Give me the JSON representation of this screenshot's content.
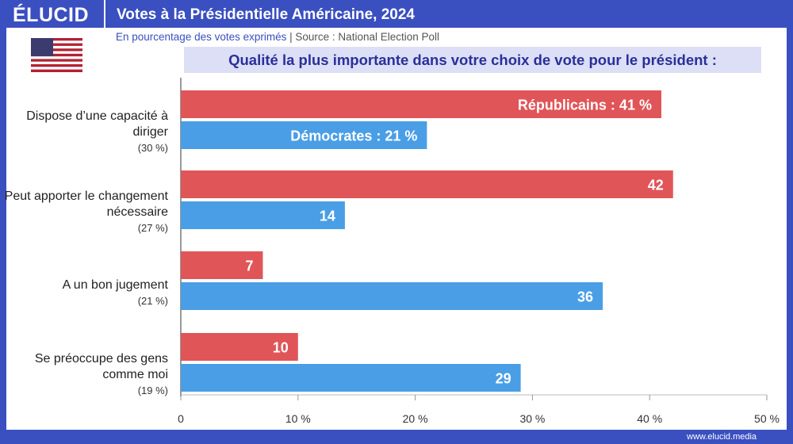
{
  "header": {
    "logo": "ÉLUCID",
    "title": "Votes à la Présidentielle Américaine, 2024",
    "subtitle": "En pourcentage des votes exprimés",
    "source": "Source : National Election Poll",
    "question": "Qualité la plus importante dans votre choix de vote pour le président :",
    "url": "www.elucid.media"
  },
  "chart_data": {
    "type": "bar",
    "orientation": "horizontal",
    "categories": [
      "Dispose d’une capacité à diriger",
      "Peut apporter le changement nécessaire",
      "A un bon jugement",
      "Se préoccupe des gens comme moi"
    ],
    "category_shares": [
      "(30 %)",
      "(27 %)",
      "(21 %)",
      "(19 %)"
    ],
    "series": [
      {
        "name": "Républicains",
        "color": "#e05558",
        "values": [
          41,
          42,
          7,
          10
        ],
        "labels": [
          "Républicains : 41 %",
          "42",
          "7",
          "10"
        ]
      },
      {
        "name": "Démocrates",
        "color": "#4a9ee6",
        "values": [
          21,
          14,
          36,
          29
        ],
        "labels": [
          "Démocrates : 21 %",
          "14",
          "36",
          "29"
        ]
      }
    ],
    "xlim": [
      0,
      50
    ],
    "xticks": [
      "0",
      "10 %",
      "20 %",
      "30 %",
      "40 %",
      "50 %"
    ],
    "grid": false
  }
}
